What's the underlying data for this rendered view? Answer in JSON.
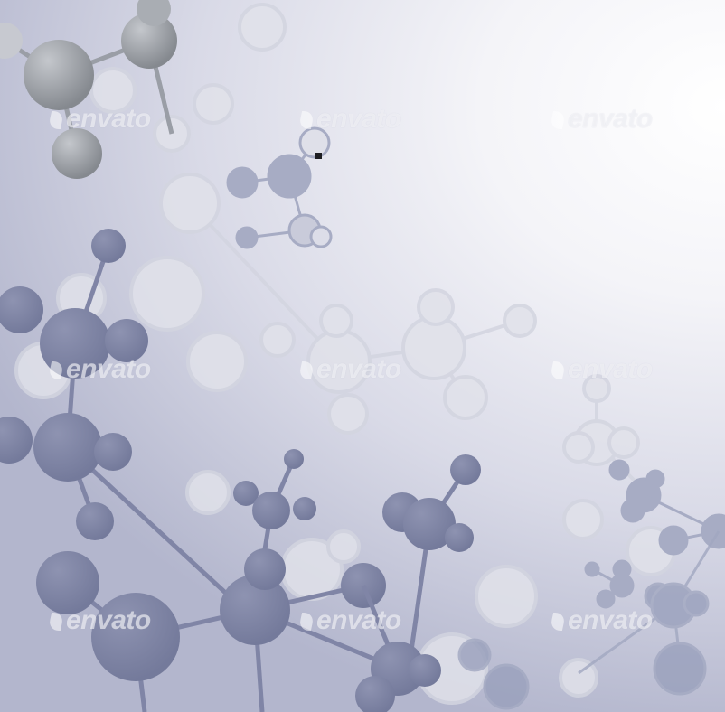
{
  "image": {
    "subject": "molecular structure background",
    "palette": {
      "background_light": "#ffffff",
      "background_dark": "#b3b6cd",
      "atom_dark": "#7e83a3",
      "atom_mid": "#a3a9c2",
      "atom_gray": "#8f9399",
      "atom_pale": "#dcdde8",
      "bond": "#8a8fae"
    }
  },
  "watermark": {
    "text": "envato",
    "icon": "envato-leaf-icon"
  }
}
